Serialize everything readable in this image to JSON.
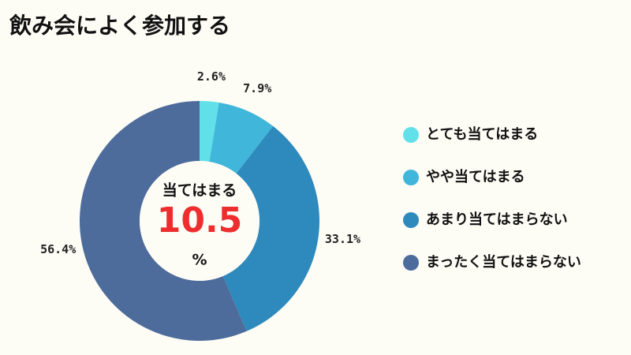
{
  "chart_data": {
    "type": "donut",
    "title": "飲み会によく参加する",
    "categories": [
      "とても当てはまる",
      "やや当てはまる",
      "あまり当てはまらない",
      "まったく当てはまらない"
    ],
    "values": [
      2.6,
      7.9,
      33.1,
      56.4
    ],
    "value_labels": [
      "2.6%",
      "7.9%",
      "33.1%",
      "56.4%"
    ],
    "colors": [
      "#62e0ea",
      "#40b6da",
      "#2e89bd",
      "#4d6b9b"
    ],
    "center_label": "当てはまる",
    "center_value": 10.5,
    "center_unit": "%",
    "legend": "right"
  }
}
